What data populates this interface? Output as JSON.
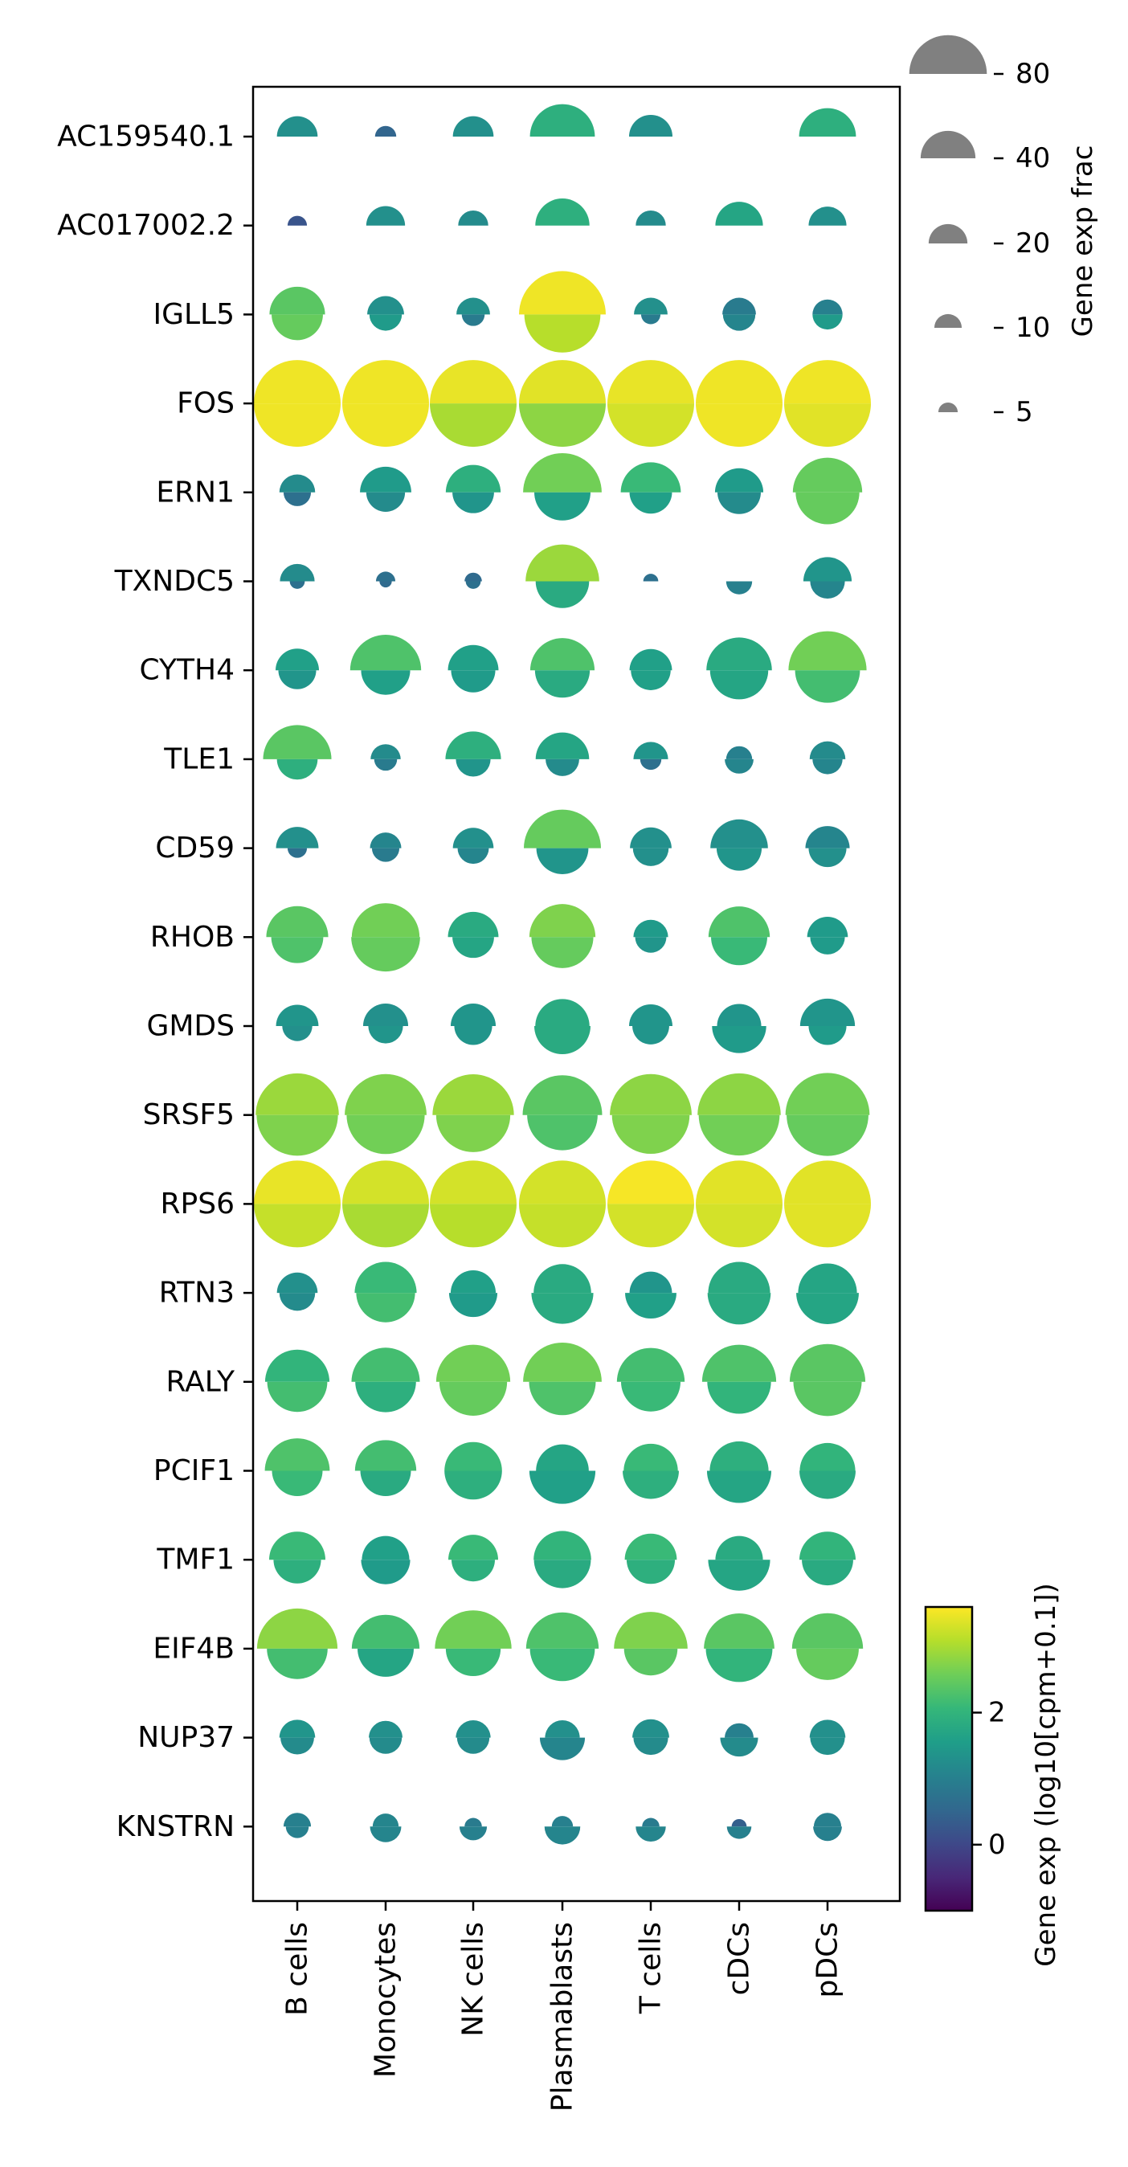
{
  "chart_data": {
    "type": "dotplot",
    "genes": [
      "AC159540.1",
      "AC017002.2",
      "IGLL5",
      "FOS",
      "ERN1",
      "TXNDC5",
      "CYTH4",
      "TLE1",
      "CD59",
      "RHOB",
      "GMDS",
      "SRSF5",
      "RPS6",
      "RTN3",
      "RALY",
      "PCIF1",
      "TMF1",
      "EIF4B",
      "NUP37",
      "KNSTRN"
    ],
    "cell_types": [
      "B cells",
      "Monocytes",
      "NK cells",
      "Plasmablasts",
      "T cells",
      "cDCs",
      "pDCs"
    ],
    "upper_frac": [
      [
        22,
        6,
        22,
        56,
        25,
        0,
        43
      ],
      [
        5,
        20,
        12,
        39,
        12,
        30,
        19
      ],
      [
        41,
        18,
        15,
        100,
        15,
        15,
        12
      ],
      [
        100,
        100,
        100,
        100,
        100,
        100,
        100
      ],
      [
        17,
        35,
        40,
        82,
        48,
        31,
        64
      ],
      [
        16,
        5,
        4,
        72,
        3,
        0,
        31
      ],
      [
        25,
        67,
        34,
        55,
        24,
        57,
        81
      ],
      [
        62,
        12,
        41,
        38,
        16,
        9,
        17
      ],
      [
        24,
        13,
        22,
        79,
        23,
        44,
        26
      ],
      [
        51,
        61,
        34,
        58,
        16,
        50,
        22
      ],
      [
        24,
        27,
        27,
        39,
        25,
        26,
        40
      ],
      [
        92,
        89,
        88,
        84,
        89,
        92,
        94
      ],
      [
        100,
        100,
        100,
        100,
        100,
        100,
        100
      ],
      [
        22,
        51,
        27,
        44,
        24,
        51,
        46
      ],
      [
        55,
        62,
        73,
        82,
        61,
        73,
        76
      ],
      [
        56,
        50,
        44,
        37,
        39,
        46,
        41
      ],
      [
        42,
        30,
        33,
        44,
        36,
        30,
        42
      ],
      [
        86,
        61,
        78,
        70,
        72,
        66,
        67
      ],
      [
        17,
        15,
        16,
        16,
        18,
        11,
        17
      ],
      [
        10,
        9,
        4,
        6,
        4,
        3,
        10
      ]
    ],
    "lower_frac": [
      [
        0,
        0,
        0,
        0,
        0,
        0,
        0
      ],
      [
        0,
        0,
        0,
        0,
        0,
        0,
        0
      ],
      [
        35,
        14,
        7,
        77,
        5,
        14,
        12
      ],
      [
        100,
        100,
        100,
        100,
        100,
        100,
        100
      ],
      [
        10,
        20,
        23,
        42,
        24,
        25,
        54
      ],
      [
        3,
        2,
        3,
        38,
        0,
        9,
        16
      ],
      [
        19,
        32,
        26,
        40,
        21,
        45,
        56
      ],
      [
        22,
        7,
        16,
        15,
        6,
        11,
        12
      ],
      [
        5,
        10,
        13,
        36,
        17,
        27,
        19
      ],
      [
        36,
        63,
        23,
        51,
        13,
        42,
        16
      ],
      [
        12,
        16,
        19,
        42,
        18,
        39,
        19
      ],
      [
        88,
        81,
        73,
        66,
        80,
        87,
        89
      ],
      [
        100,
        100,
        100,
        100,
        100,
        100,
        100
      ],
      [
        17,
        46,
        31,
        51,
        35,
        53,
        52
      ],
      [
        48,
        49,
        61,
        59,
        47,
        54,
        62
      ],
      [
        34,
        34,
        44,
        58,
        42,
        55,
        42
      ],
      [
        30,
        32,
        25,
        43,
        31,
        51,
        35
      ],
      [
        49,
        42,
        40,
        56,
        38,
        59,
        52
      ],
      [
        15,
        14,
        14,
        27,
        16,
        19,
        16
      ],
      [
        7,
        13,
        10,
        17,
        12,
        8,
        11
      ]
    ],
    "upper_expr": [
      [
        1.3,
        0.5,
        1.3,
        1.9,
        1.3,
        null,
        1.9
      ],
      [
        0.2,
        1.3,
        1.2,
        1.9,
        1.2,
        1.7,
        1.3
      ],
      [
        2.4,
        1.3,
        1.3,
        3.5,
        1.3,
        0.9,
        1.0
      ],
      [
        3.5,
        3.5,
        3.45,
        3.4,
        3.45,
        3.5,
        3.5
      ],
      [
        1.2,
        1.5,
        1.9,
        2.6,
        2.1,
        1.5,
        2.5
      ],
      [
        1.2,
        0.7,
        0.6,
        2.9,
        0.7,
        null,
        1.4
      ],
      [
        1.6,
        2.3,
        1.6,
        2.3,
        1.6,
        1.8,
        2.6
      ],
      [
        2.4,
        1.2,
        1.9,
        1.7,
        1.4,
        1.0,
        1.2
      ],
      [
        1.3,
        1.1,
        1.3,
        2.5,
        1.3,
        1.3,
        1.1
      ],
      [
        2.4,
        2.6,
        1.8,
        2.7,
        1.5,
        2.3,
        1.5
      ],
      [
        1.4,
        1.3,
        1.4,
        1.8,
        1.4,
        1.4,
        1.4
      ],
      [
        2.9,
        2.7,
        2.9,
        2.4,
        2.8,
        2.8,
        2.6
      ],
      [
        3.45,
        3.3,
        3.3,
        3.3,
        3.55,
        3.4,
        3.4
      ],
      [
        1.3,
        2.1,
        1.6,
        1.8,
        1.4,
        1.8,
        1.7
      ],
      [
        2.0,
        2.2,
        2.6,
        2.6,
        2.2,
        2.3,
        2.4
      ],
      [
        2.3,
        2.2,
        2.1,
        1.7,
        2.1,
        1.9,
        2.0
      ],
      [
        2.1,
        1.6,
        2.1,
        2.0,
        2.1,
        1.8,
        2.0
      ],
      [
        2.8,
        2.2,
        2.6,
        2.3,
        2.7,
        2.4,
        2.4
      ],
      [
        1.4,
        1.3,
        1.3,
        1.3,
        1.3,
        1.0,
        1.3
      ],
      [
        1.0,
        1.1,
        0.9,
        1.0,
        0.9,
        0.4,
        1.0
      ]
    ],
    "lower_expr": [
      [
        null,
        null,
        null,
        null,
        null,
        null,
        null
      ],
      [
        null,
        null,
        null,
        null,
        null,
        null,
        null
      ],
      [
        2.5,
        1.5,
        0.9,
        3.1,
        0.9,
        1.1,
        1.5
      ],
      [
        3.5,
        3.5,
        3.0,
        2.8,
        3.3,
        3.5,
        3.4
      ],
      [
        0.7,
        1.2,
        1.4,
        1.6,
        1.6,
        1.2,
        2.5
      ],
      [
        0.7,
        0.6,
        0.7,
        1.8,
        null,
        1.0,
        1.1
      ],
      [
        1.4,
        1.6,
        1.5,
        1.8,
        1.6,
        1.7,
        2.2
      ],
      [
        1.9,
        0.9,
        1.4,
        1.2,
        0.7,
        1.1,
        1.1
      ],
      [
        0.7,
        0.9,
        1.1,
        1.4,
        1.3,
        1.4,
        1.3
      ],
      [
        2.3,
        2.5,
        1.7,
        2.5,
        1.4,
        2.1,
        1.5
      ],
      [
        1.3,
        1.4,
        1.4,
        1.8,
        1.4,
        1.5,
        1.5
      ],
      [
        2.7,
        2.6,
        2.7,
        2.3,
        2.7,
        2.6,
        2.5
      ],
      [
        3.2,
        3.0,
        3.1,
        3.2,
        3.3,
        3.3,
        3.4
      ],
      [
        1.2,
        2.2,
        1.5,
        1.8,
        1.6,
        1.8,
        1.7
      ],
      [
        2.2,
        1.9,
        2.5,
        2.3,
        2.1,
        2.0,
        2.4
      ],
      [
        2.1,
        1.8,
        1.9,
        1.6,
        1.9,
        1.7,
        1.8
      ],
      [
        1.9,
        1.5,
        1.9,
        1.8,
        1.9,
        1.7,
        1.8
      ],
      [
        2.2,
        1.7,
        2.1,
        2.1,
        2.4,
        2.0,
        2.5
      ],
      [
        1.2,
        1.2,
        1.2,
        1.1,
        1.2,
        1.2,
        1.3
      ],
      [
        1.0,
        1.1,
        1.0,
        1.1,
        1.1,
        1.0,
        1.0
      ]
    ],
    "size_legend": {
      "title": "Gene exp frac",
      "values": [
        80,
        40,
        20,
        10,
        5
      ],
      "labels": [
        "80",
        "40",
        "20",
        "10",
        "5"
      ],
      "color": "#808080"
    },
    "colorbar": {
      "title": "Gene exp (log10[cpm+0.1])",
      "range": [
        -1,
        3.6
      ],
      "ticks": [
        0,
        2
      ],
      "tick_labels": [
        "0",
        "2"
      ],
      "colormap": "viridis"
    },
    "grid": false,
    "legend_position": "right"
  }
}
